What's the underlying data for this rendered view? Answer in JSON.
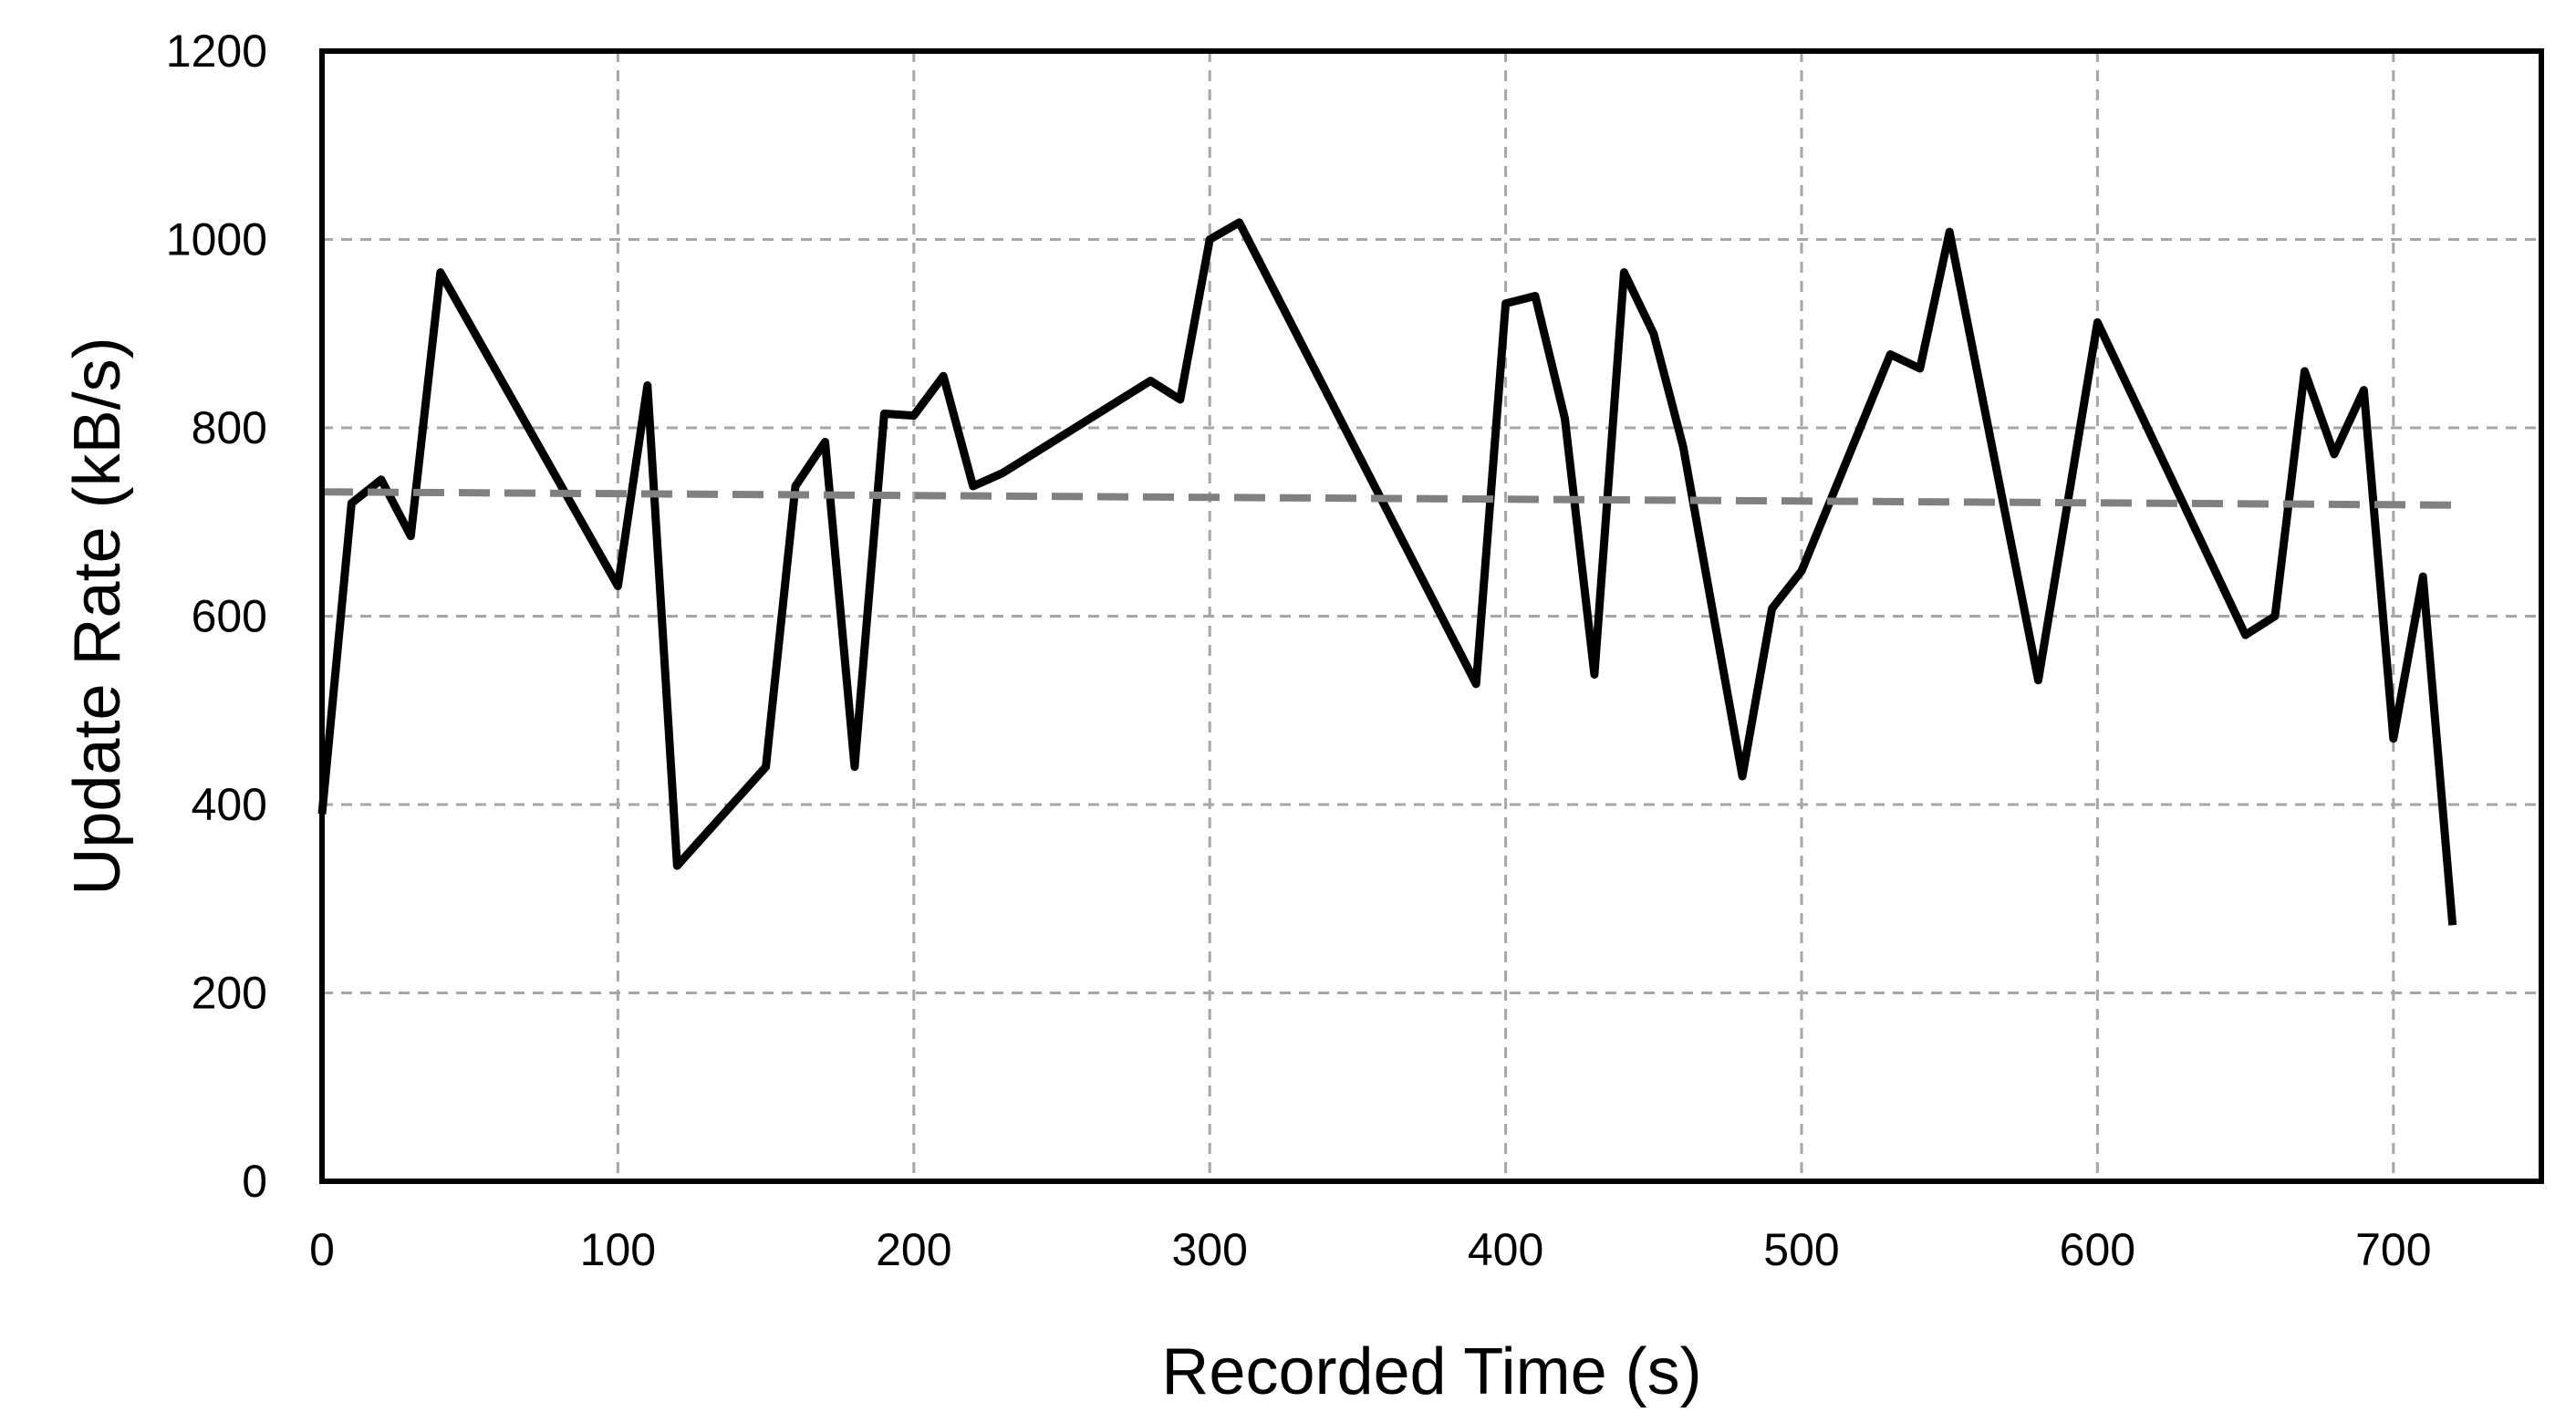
{
  "chart_data": {
    "type": "line",
    "title": "",
    "xlabel": "Recorded Time (s)",
    "ylabel": "Update Rate (kB/s)",
    "xlim": [
      0,
      750
    ],
    "ylim": [
      0,
      1200
    ],
    "x_ticks": [
      0,
      100,
      200,
      300,
      400,
      500,
      600,
      700
    ],
    "y_ticks": [
      0,
      200,
      400,
      600,
      800,
      1000,
      1200
    ],
    "grid": true,
    "legend": "none",
    "series": [
      {
        "style": "solid",
        "color": "#000000",
        "points": [
          [
            0,
            390
          ],
          [
            10,
            720
          ],
          [
            20,
            745
          ],
          [
            30,
            685
          ],
          [
            40,
            965
          ],
          [
            100,
            632
          ],
          [
            110,
            845
          ],
          [
            120,
            335
          ],
          [
            150,
            440
          ],
          [
            160,
            738
          ],
          [
            170,
            785
          ],
          [
            180,
            440
          ],
          [
            190,
            815
          ],
          [
            200,
            813
          ],
          [
            210,
            855
          ],
          [
            220,
            738
          ],
          [
            230,
            752
          ],
          [
            280,
            850
          ],
          [
            290,
            830
          ],
          [
            300,
            1000
          ],
          [
            310,
            1018
          ],
          [
            390,
            528
          ],
          [
            400,
            932
          ],
          [
            410,
            940
          ],
          [
            420,
            810
          ],
          [
            430,
            538
          ],
          [
            440,
            965
          ],
          [
            450,
            900
          ],
          [
            460,
            780
          ],
          [
            480,
            430
          ],
          [
            490,
            608
          ],
          [
            500,
            648
          ],
          [
            530,
            878
          ],
          [
            540,
            863
          ],
          [
            550,
            1008
          ],
          [
            580,
            532
          ],
          [
            600,
            912
          ],
          [
            650,
            580
          ],
          [
            660,
            600
          ],
          [
            670,
            860
          ],
          [
            680,
            772
          ],
          [
            690,
            840
          ],
          [
            700,
            470
          ],
          [
            710,
            642
          ],
          [
            720,
            272
          ]
        ]
      },
      {
        "style": "dashed",
        "color": "#808080",
        "points": [
          [
            0,
            732
          ],
          [
            720,
            718
          ]
        ]
      }
    ]
  }
}
